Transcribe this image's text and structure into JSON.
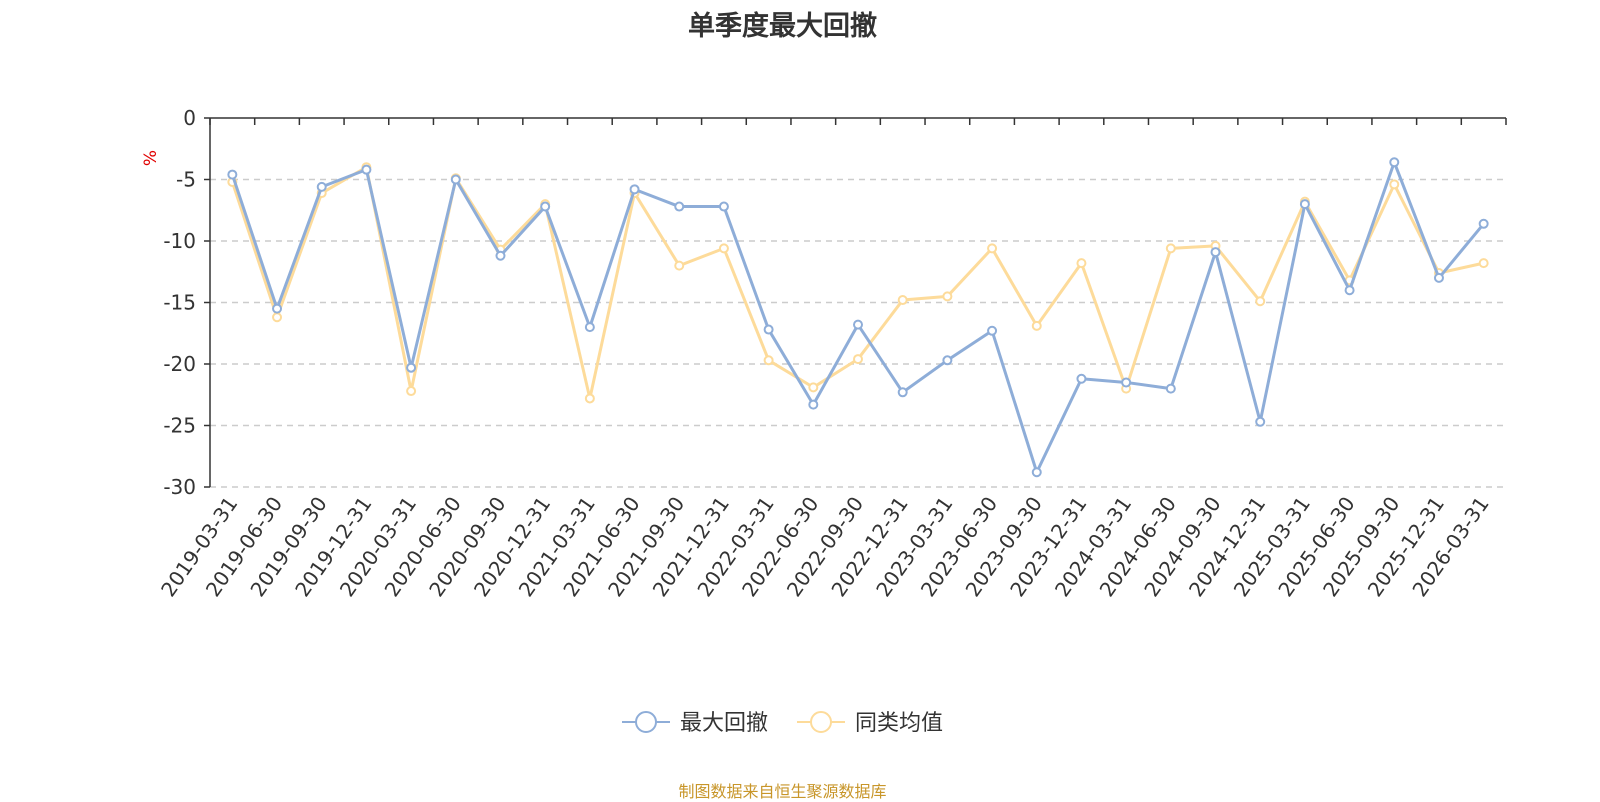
{
  "chart_data": {
    "type": "line",
    "title": "单季度最大回撤",
    "ylabel": "%",
    "ylim": [
      -30,
      0
    ],
    "yticks": [
      0,
      -5,
      -10,
      -15,
      -20,
      -25,
      -30
    ],
    "grid": true,
    "legend_position": "bottom",
    "categories": [
      "2019-03-31",
      "2019-06-30",
      "2019-09-30",
      "2019-12-31",
      "2020-03-31",
      "2020-06-30",
      "2020-09-30",
      "2020-12-31",
      "2021-03-31",
      "2021-06-30",
      "2021-09-30",
      "2021-12-31",
      "2022-03-31",
      "2022-06-30",
      "2022-09-30",
      "2022-12-31",
      "2023-03-31",
      "2023-06-30",
      "2023-09-30",
      "2023-12-31",
      "2024-03-31",
      "2024-06-30",
      "2024-09-30",
      "2024-12-31",
      "2025-03-31",
      "2025-06-30",
      "2025-09-30",
      "2025-12-31",
      "2026-03-31"
    ],
    "series": [
      {
        "name": "最大回撤",
        "color": "#8eadd8",
        "values": [
          -4.6,
          -15.5,
          -5.6,
          -4.2,
          -20.3,
          -5.0,
          -11.2,
          -7.2,
          -17.0,
          -5.8,
          -7.2,
          -7.2,
          -17.2,
          -23.3,
          -16.8,
          -22.3,
          -19.7,
          -17.3,
          -28.8,
          -21.2,
          -21.5,
          -22.0,
          -10.9,
          -24.7,
          -7.0,
          -14.0,
          -3.6,
          -13.0,
          -8.6
        ]
      },
      {
        "name": "同类均值",
        "color": "#fddb9a",
        "values": [
          -5.2,
          -16.2,
          -6.1,
          -4.0,
          -22.2,
          -4.9,
          -10.7,
          -7.0,
          -22.8,
          -6.1,
          -12.0,
          -10.6,
          -19.7,
          -21.9,
          -19.6,
          -14.8,
          -14.5,
          -10.6,
          -16.9,
          -11.8,
          -22.0,
          -10.6,
          -10.4,
          -14.9,
          -6.8,
          -13.2,
          -5.4,
          -12.6,
          -11.8
        ]
      }
    ]
  },
  "footer": "制图数据来自恒生聚源数据库"
}
